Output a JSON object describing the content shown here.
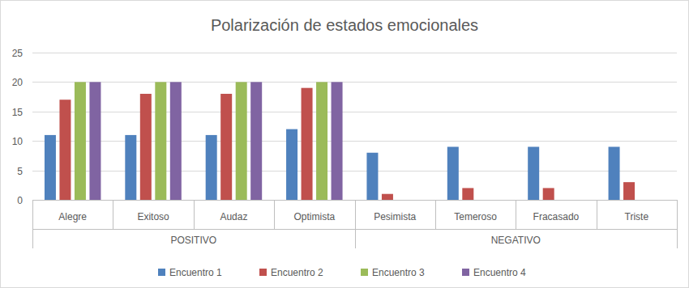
{
  "chart_data": {
    "type": "bar",
    "title": "Polarización de estados emocionales",
    "categories": [
      "Alegre",
      "Exitoso",
      "Audaz",
      "Optimista",
      "Pesimista",
      "Temeroso",
      "Fracasado",
      "Triste"
    ],
    "category_groups": [
      "POSITIVO",
      "POSITIVO",
      "POSITIVO",
      "POSITIVO",
      "NEGATIVO",
      "NEGATIVO",
      "NEGATIVO",
      "NEGATIVO"
    ],
    "series": [
      {
        "name": "Encuentro 1",
        "color": "#4f81bd",
        "values": [
          11,
          11,
          11,
          12,
          8,
          9,
          9,
          9
        ]
      },
      {
        "name": "Encuentro 2",
        "color": "#c0504d",
        "values": [
          17,
          18,
          18,
          19,
          1,
          2,
          2,
          3
        ]
      },
      {
        "name": "Encuentro 3",
        "color": "#9bbb59",
        "values": [
          20,
          20,
          20,
          20,
          0,
          0,
          0,
          0
        ]
      },
      {
        "name": "Encuentro 4",
        "color": "#8064a2",
        "values": [
          20,
          20,
          20,
          20,
          0,
          0,
          0,
          0
        ]
      }
    ],
    "ylim": [
      0,
      25
    ],
    "yticks": [
      0,
      5,
      10,
      15,
      20,
      25
    ],
    "grid": true,
    "legend": "bottom"
  }
}
